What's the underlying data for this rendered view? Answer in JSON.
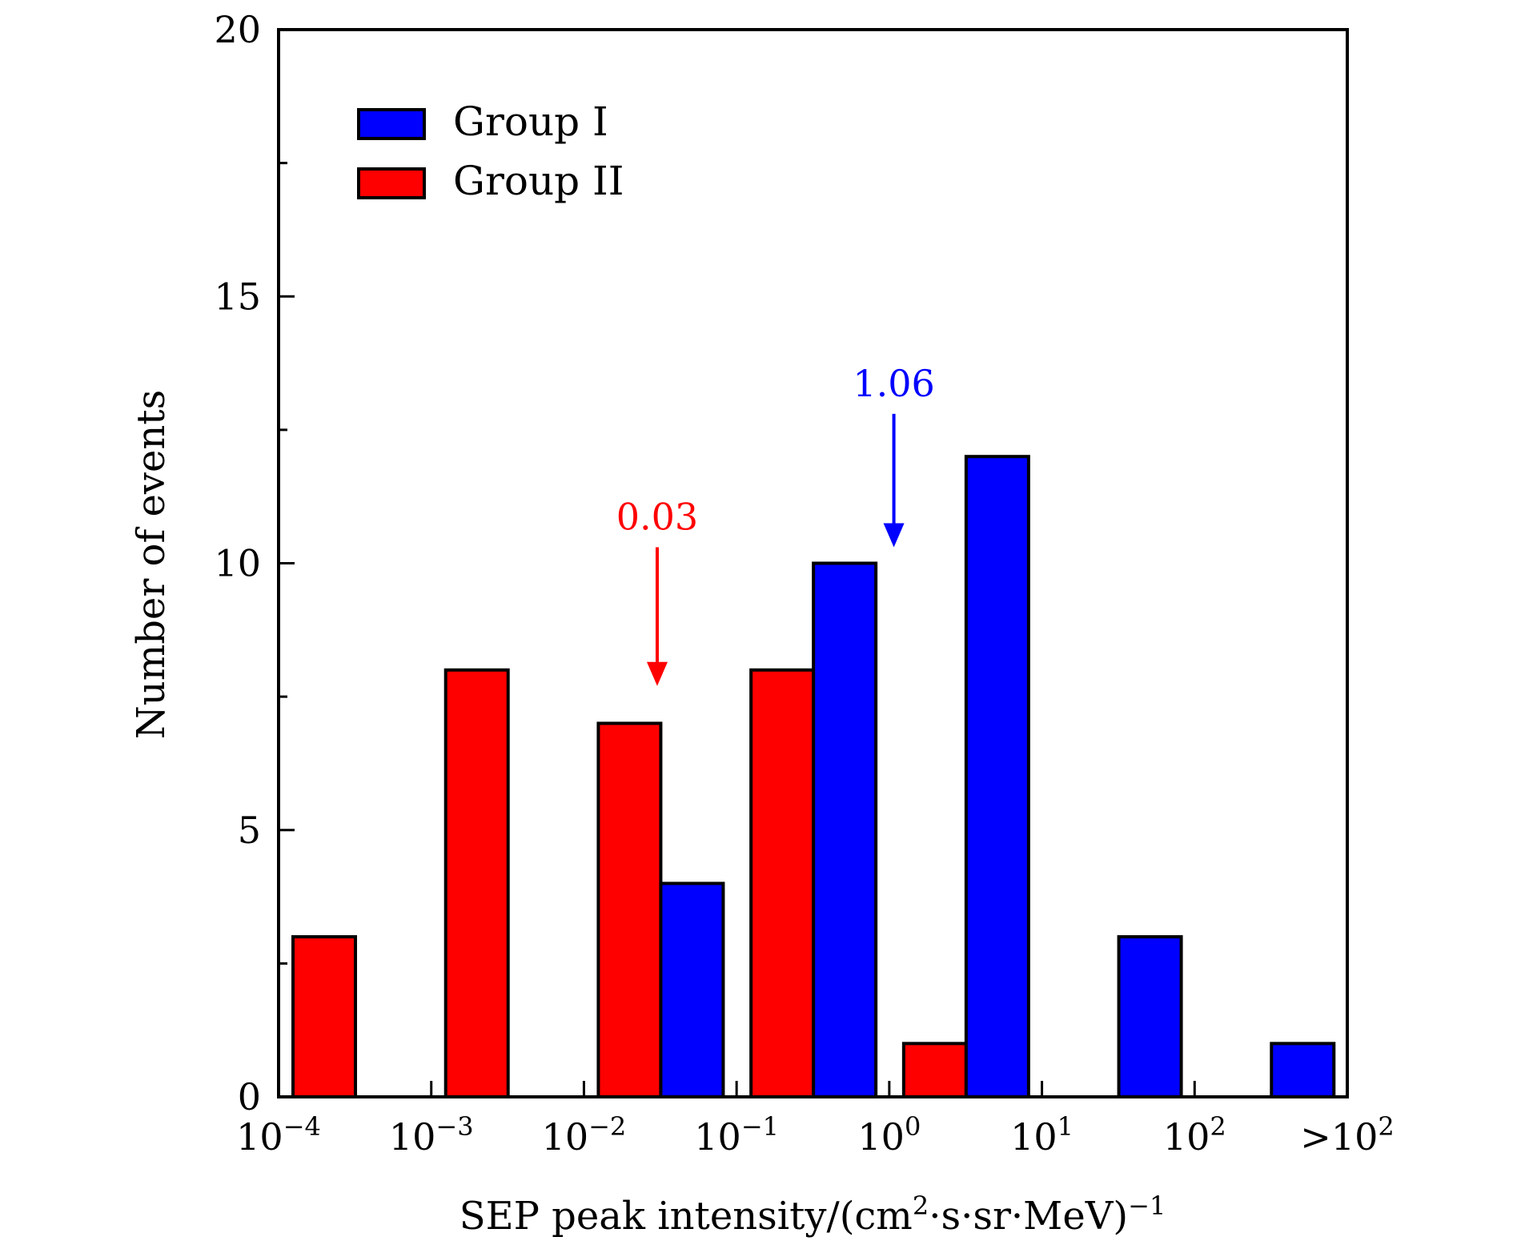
{
  "chart_data": {
    "type": "bar",
    "xlabel": "SEP peak intensity/(cm²·s·sr·MeV)⁻¹",
    "ylabel": "Number of events",
    "ylim": [
      0,
      20
    ],
    "yticks": [
      "0",
      "5",
      "10",
      "15",
      "20"
    ],
    "xtick_labels": [
      {
        "base": "10",
        "exp": "−4"
      },
      {
        "base": "10",
        "exp": "−3"
      },
      {
        "base": "10",
        "exp": "−2"
      },
      {
        "base": "10",
        "exp": "−1"
      },
      {
        "base": "10",
        "exp": "0"
      },
      {
        "base": "10",
        "exp": "1"
      },
      {
        "base": "10",
        "exp": "2"
      },
      {
        "base": ">10",
        "exp": "2"
      }
    ],
    "categories": [
      "10^-4–10^-3",
      "10^-3–10^-2",
      "10^-2–10^-1",
      "10^-1–10^0",
      "10^0–10^1",
      "10^1–10^2",
      "10^2–>10^2"
    ],
    "series": [
      {
        "name": "Group I",
        "color": "#0000ff",
        "values": [
          0,
          0,
          4,
          10,
          12,
          3,
          1
        ]
      },
      {
        "name": "Group II",
        "color": "#ff0000",
        "values": [
          3,
          8,
          7,
          8,
          1,
          0,
          0
        ]
      }
    ],
    "annotations": [
      {
        "text": "0.03",
        "color": "#ff0000",
        "x_log10": -1.52,
        "arrow_from": 10.3,
        "arrow_to": 7.7
      },
      {
        "text": "1.06",
        "color": "#0000ff",
        "x_log10": 0.03,
        "arrow_from": 12.8,
        "arrow_to": 10.3
      }
    ],
    "legend": {
      "position": "top-left"
    },
    "grid": false
  }
}
